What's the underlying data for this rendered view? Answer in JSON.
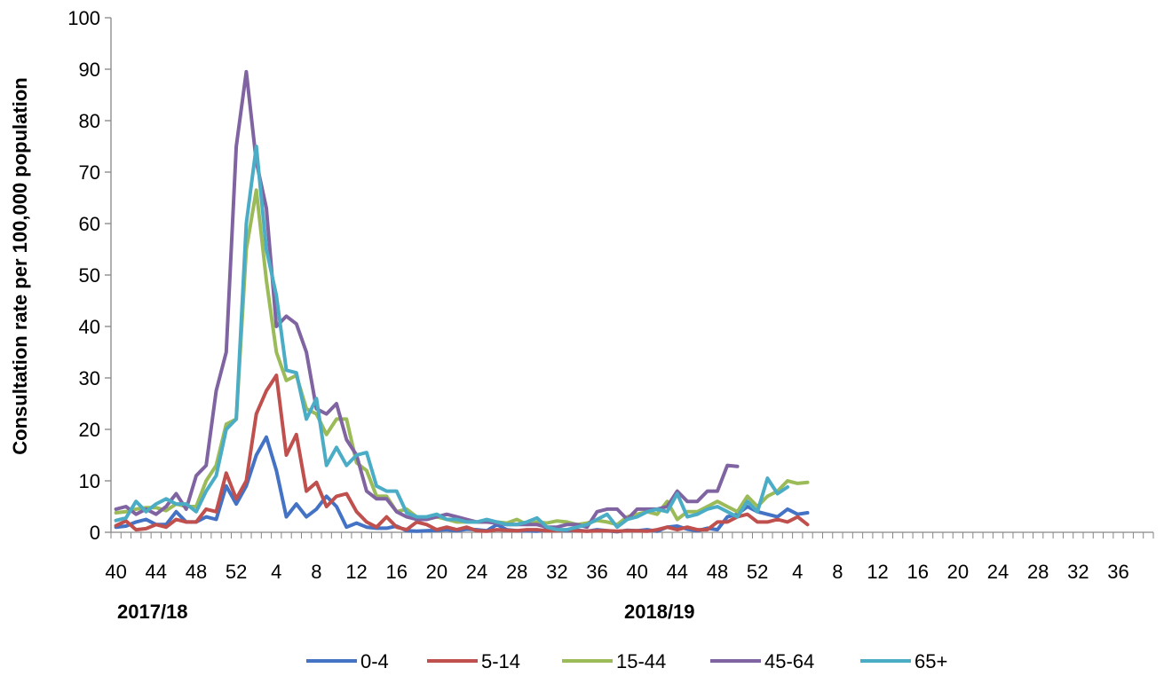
{
  "chart_data": {
    "type": "line",
    "ylabel": "Consultation rate per 100,000 population",
    "ylim": [
      0,
      100
    ],
    "yticks": [
      0,
      10,
      20,
      30,
      40,
      50,
      60,
      70,
      80,
      90,
      100
    ],
    "xtick_labels": [
      "40",
      "44",
      "48",
      "52",
      "4",
      "8",
      "12",
      "16",
      "20",
      "24",
      "28",
      "32",
      "36",
      "40",
      "44",
      "48",
      "52",
      "4",
      "8",
      "12",
      "16",
      "20",
      "24",
      "28",
      "32",
      "36"
    ],
    "seasons": [
      "2017/18",
      "2018/19"
    ],
    "grid": false,
    "legend_position": "bottom",
    "series": [
      {
        "name": "0-4",
        "color": "#4472C4",
        "values": [
          1,
          1.2,
          2,
          2.5,
          1.5,
          1.5,
          4,
          2,
          2,
          3,
          2.5,
          9,
          5.5,
          9,
          15,
          18.5,
          12,
          3,
          5.5,
          3,
          4.5,
          7,
          5,
          1,
          1.8,
          1,
          0.8,
          0.8,
          1.2,
          0.3,
          0.2,
          0.3,
          0.4,
          0.5,
          0.3,
          0.6,
          0.5,
          0.3,
          1.5,
          0.5,
          0.3,
          0.3,
          0.2,
          0.5,
          0.5,
          0.3,
          0.4,
          0.2,
          0.5,
          0.3,
          0.1,
          0.4,
          0.3,
          0.5,
          0.2,
          1,
          1.2,
          0.6,
          0.3,
          0.8,
          0.5,
          3,
          3.5,
          5,
          4,
          3.5,
          3,
          4.5,
          3.5,
          3.8
        ]
      },
      {
        "name": "5-14",
        "color": "#C0504D",
        "values": [
          1.3,
          2.2,
          0.5,
          0.7,
          1.5,
          1,
          2.5,
          2,
          2,
          4.5,
          4,
          11.5,
          6.5,
          10,
          23,
          27.5,
          30.5,
          15,
          19,
          8,
          9.7,
          5,
          7,
          7.5,
          4,
          2,
          1,
          3,
          1,
          0.5,
          2,
          1.5,
          0.5,
          1,
          0.5,
          1,
          0.3,
          0.2,
          0.5,
          0.4,
          0.3,
          0.5,
          0.5,
          0.3,
          0.3,
          0.5,
          0.3,
          0.2,
          0.3,
          0.3,
          0.2,
          0.3,
          0.3,
          0.2,
          0.5,
          1,
          0.5,
          1,
          0.5,
          0.5,
          2,
          2,
          3,
          3.5,
          2,
          2,
          2.5,
          2,
          3,
          1.5
        ]
      },
      {
        "name": "15-44",
        "color": "#9BBB59",
        "values": [
          3.8,
          4,
          4.5,
          4.8,
          4.8,
          4.2,
          5.5,
          5,
          5,
          10,
          13,
          21,
          22,
          55,
          66.5,
          49,
          35,
          29.5,
          30.5,
          24,
          23,
          19,
          22,
          22,
          13.5,
          12,
          7,
          7,
          4,
          4.5,
          3,
          2.5,
          3,
          2.5,
          2,
          2,
          2,
          2,
          2,
          1.8,
          2.5,
          1.5,
          2,
          1.8,
          2.2,
          2,
          1.5,
          1.8,
          2.3,
          2,
          1.5,
          3,
          3.5,
          4,
          3.5,
          6,
          2.5,
          4,
          4,
          5,
          6,
          5,
          4,
          7,
          5,
          7,
          8,
          10,
          9.5,
          9.7
        ]
      },
      {
        "name": "45-64",
        "color": "#8064A2",
        "values": [
          4.5,
          5,
          3.5,
          4.5,
          3.5,
          5,
          7.5,
          4.5,
          11,
          13,
          27.5,
          35,
          75,
          89.5,
          72,
          63,
          40,
          42,
          40.5,
          35,
          24,
          23,
          25,
          18,
          15,
          8,
          6.5,
          6.5,
          4,
          3,
          2.5,
          2.5,
          3,
          3.5,
          3,
          2.5,
          2,
          2,
          1.8,
          1.5,
          1.5,
          1.5,
          1.5,
          1,
          1,
          1.5,
          1.5,
          1,
          4,
          4.5,
          4.5,
          2.5,
          4.5,
          4.5,
          4.5,
          5,
          8,
          6,
          6,
          8,
          8,
          13,
          12.8
        ]
      },
      {
        "name": "65+",
        "color": "#4BACC6",
        "values": [
          2.3,
          2.8,
          6,
          4,
          5.5,
          6.5,
          5.5,
          5.5,
          4,
          8,
          11,
          20,
          22,
          60,
          75,
          55,
          46,
          31.5,
          31,
          22,
          26,
          13,
          16.5,
          13,
          15,
          15.5,
          9,
          8,
          8,
          3.8,
          3,
          3,
          3.5,
          2.5,
          2.5,
          2,
          2,
          2.5,
          2,
          1.5,
          1.5,
          2,
          2.8,
          1,
          0.5,
          0.5,
          1,
          1.5,
          2.5,
          3.5,
          1,
          2.5,
          3,
          4,
          4.5,
          4,
          7.5,
          3,
          3.5,
          4.5,
          5,
          4,
          3,
          6,
          4,
          10.5,
          7.5,
          8.8
        ]
      }
    ]
  }
}
